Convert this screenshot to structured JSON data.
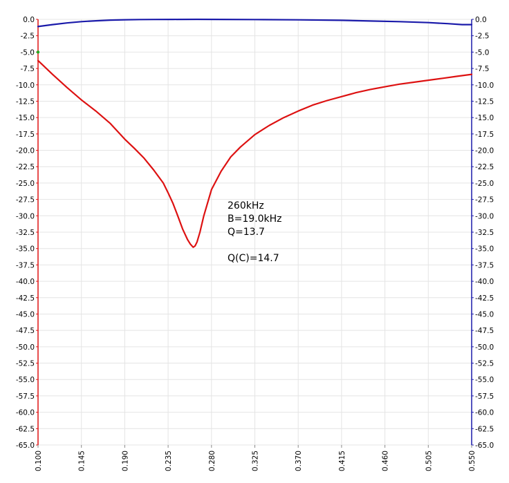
{
  "chart_data": {
    "type": "line",
    "title": "",
    "xlabel": "",
    "ylabel": "",
    "xlim": [
      0.1,
      0.55
    ],
    "ylim": [
      -65.0,
      0.0
    ],
    "x_ticks": [
      "0.100",
      "0.145",
      "0.190",
      "0.235",
      "0.280",
      "0.325",
      "0.370",
      "0.415",
      "0.460",
      "0.505",
      "0.550"
    ],
    "y_ticks_left": [
      "0.0",
      "-2.5",
      "-5.0",
      "-7.5",
      "-10.0",
      "-12.5",
      "-15.0",
      "-17.5",
      "-20.0",
      "-22.5",
      "-25.0",
      "-27.5",
      "-30.0",
      "-32.5",
      "-35.0",
      "-37.5",
      "-40.0",
      "-42.5",
      "-45.0",
      "-47.5",
      "-50.0",
      "-52.5",
      "-55.0",
      "-57.5",
      "-60.0",
      "-62.5",
      "-65.0"
    ],
    "y_ticks_right": [
      "0.0",
      "-2.5",
      "-5.0",
      "-7.5",
      "-10.0",
      "-12.5",
      "-15.0",
      "-17.5",
      "-20.0",
      "-22.5",
      "-25.0",
      "-27.5",
      "-30.0",
      "-32.5",
      "-35.0",
      "-37.5",
      "-40.0",
      "-42.5",
      "-45.0",
      "-47.5",
      "-50.0",
      "-52.5",
      "-55.0",
      "-57.5",
      "-60.0",
      "-62.5",
      "-65.0"
    ],
    "grid": true,
    "colors": {
      "left_axis": "#dd1111",
      "right_axis": "#1a1aaa",
      "grid": "#e4e4e4"
    },
    "series": [
      {
        "color": "#dd1111",
        "axis": "left",
        "x": [
          0.1,
          0.105,
          0.115,
          0.13,
          0.145,
          0.16,
          0.175,
          0.19,
          0.2,
          0.21,
          0.22,
          0.23,
          0.235,
          0.24,
          0.245,
          0.25,
          0.255,
          0.258,
          0.261,
          0.263,
          0.265,
          0.268,
          0.272,
          0.28,
          0.29,
          0.3,
          0.31,
          0.325,
          0.34,
          0.355,
          0.37,
          0.385,
          0.4,
          0.415,
          0.43,
          0.445,
          0.46,
          0.475,
          0.49,
          0.505,
          0.52,
          0.535,
          0.55
        ],
        "y": [
          -6.3,
          -7.0,
          -8.4,
          -10.4,
          -12.3,
          -14.0,
          -15.9,
          -18.3,
          -19.7,
          -21.2,
          -23.0,
          -25.0,
          -26.5,
          -28.1,
          -30.0,
          -32.0,
          -33.6,
          -34.3,
          -34.8,
          -34.6,
          -34.0,
          -32.5,
          -30.0,
          -26.0,
          -23.2,
          -21.0,
          -19.5,
          -17.6,
          -16.2,
          -15.0,
          -14.0,
          -13.1,
          -12.4,
          -11.8,
          -11.2,
          -10.7,
          -10.3,
          -9.9,
          -9.6,
          -9.3,
          -9.0,
          -8.7,
          -8.4
        ]
      },
      {
        "color": "#1a1aaa",
        "axis": "right",
        "x": [
          0.1,
          0.115,
          0.13,
          0.145,
          0.16,
          0.175,
          0.19,
          0.205,
          0.22,
          0.24,
          0.265,
          0.29,
          0.325,
          0.37,
          0.415,
          0.445,
          0.475,
          0.505,
          0.525,
          0.54,
          0.55
        ],
        "y": [
          -1.1,
          -0.8,
          -0.55,
          -0.35,
          -0.22,
          -0.12,
          -0.06,
          -0.03,
          -0.02,
          -0.01,
          0.0,
          -0.01,
          -0.03,
          -0.07,
          -0.15,
          -0.25,
          -0.35,
          -0.5,
          -0.65,
          -0.8,
          -0.8
        ]
      }
    ],
    "annotations": {
      "freq": "260kHz",
      "bandwidth": "B=19.0kHz",
      "q": "Q=13.7",
      "qc": "Q(C)=14.7"
    }
  }
}
